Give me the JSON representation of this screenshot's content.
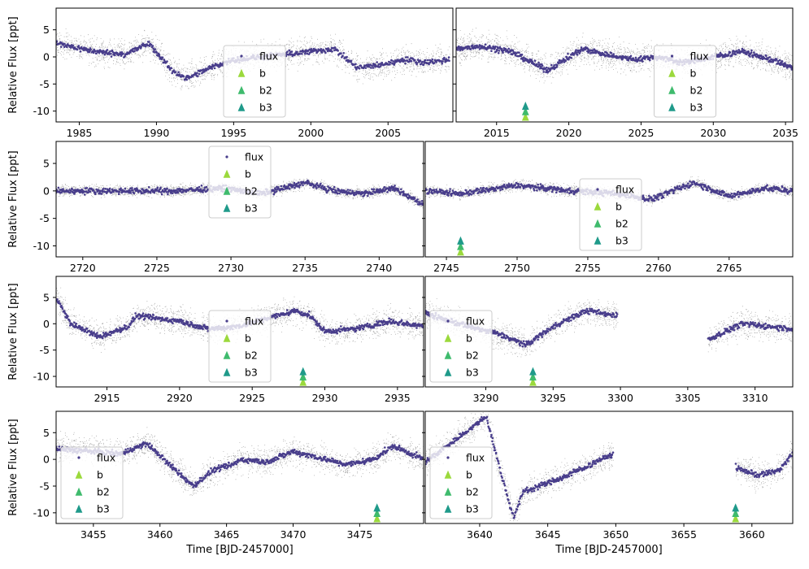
{
  "legend_labels": [
    "flux",
    "b",
    "b2",
    "b3"
  ],
  "colors": {
    "binned": "#483d8b",
    "raw": "#222222",
    "b": "#9bd93c",
    "b2": "#3fbb6d",
    "b3": "#1f9a8a",
    "band": "#e6e0f0"
  },
  "chart_data": [
    {
      "type": "scatter",
      "xlim": [
        1983.5,
        2009.2
      ],
      "ylim": [
        -12,
        9
      ],
      "xticks": [
        1985,
        1990,
        1995,
        2000,
        2005
      ],
      "yticks": [
        5,
        0,
        -5,
        -10
      ],
      "ylabel": "Relative Flux [ppt]",
      "xlabel": "",
      "legend": "lower-center",
      "transits": [],
      "curve": [
        [
          1983.5,
          2.5
        ],
        [
          1986,
          1
        ],
        [
          1988,
          0.5
        ],
        [
          1989.5,
          2.5
        ],
        [
          1991,
          -2.5
        ],
        [
          1992,
          -4
        ],
        [
          1993.5,
          -2
        ],
        [
          1995,
          -0.5
        ],
        [
          1997,
          0
        ],
        [
          1998.5,
          0.5
        ],
        [
          2000,
          1
        ],
        [
          2001.5,
          1.5
        ],
        [
          2003,
          -2
        ],
        [
          2004.5,
          -1.5
        ],
        [
          2006,
          -0.5
        ],
        [
          2007.5,
          -1
        ],
        [
          2009,
          -0.5
        ]
      ]
    },
    {
      "type": "scatter",
      "xlim": [
        2012.2,
        2035.5
      ],
      "ylim": [
        -12,
        9
      ],
      "xticks": [
        2015,
        2020,
        2025,
        2030,
        2035
      ],
      "yticks": [
        5,
        0,
        -5,
        -10
      ],
      "ylabel": "",
      "xlabel": "",
      "legend": "lower-right",
      "transits": [
        2017
      ],
      "curve": [
        [
          2012.2,
          1.5
        ],
        [
          2014,
          2
        ],
        [
          2016,
          1
        ],
        [
          2018.5,
          -2.5
        ],
        [
          2020,
          0
        ],
        [
          2021,
          1.5
        ],
        [
          2022.5,
          0.5
        ],
        [
          2024.5,
          -0.5
        ],
        [
          2026,
          0
        ],
        [
          2028,
          -1
        ],
        [
          2030,
          0
        ],
        [
          2032,
          1
        ],
        [
          2034,
          -0.5
        ],
        [
          2035.5,
          -2
        ]
      ]
    },
    {
      "type": "scatter",
      "xlim": [
        2718.2,
        2743
      ],
      "ylim": [
        -12,
        9
      ],
      "xticks": [
        2720,
        2725,
        2730,
        2735,
        2740
      ],
      "yticks": [
        5,
        0,
        -5,
        -10
      ],
      "ylabel": "Relative Flux [ppt]",
      "xlabel": "",
      "legend": "center",
      "transits": [],
      "curve": [
        [
          2718.2,
          0
        ],
        [
          2722,
          0
        ],
        [
          2726,
          0
        ],
        [
          2729.5,
          0.5
        ],
        [
          2732,
          -0.5
        ],
        [
          2735,
          1.5
        ],
        [
          2737,
          0
        ],
        [
          2739,
          -0.5
        ],
        [
          2741,
          0.5
        ],
        [
          2743,
          -2.5
        ]
      ]
    },
    {
      "type": "scatter",
      "xlim": [
        2743.5,
        2769.5
      ],
      "ylim": [
        -12,
        9
      ],
      "xticks": [
        2745,
        2750,
        2755,
        2760,
        2765
      ],
      "yticks": [
        5,
        0,
        -5,
        -10
      ],
      "ylabel": "",
      "xlabel": "",
      "legend": "center",
      "transits": [
        2746
      ],
      "curve": [
        [
          2743.5,
          0
        ],
        [
          2746,
          -0.5
        ],
        [
          2750,
          1
        ],
        [
          2754,
          0
        ],
        [
          2757,
          -0.5
        ],
        [
          2759.5,
          -1.5
        ],
        [
          2762.5,
          1.5
        ],
        [
          2765,
          -1
        ],
        [
          2767.5,
          0.5
        ],
        [
          2769.5,
          0
        ]
      ]
    },
    {
      "type": "scatter",
      "xlim": [
        2911.5,
        2936.8
      ],
      "ylim": [
        -12,
        9
      ],
      "xticks": [
        2915,
        2920,
        2925,
        2930,
        2935
      ],
      "yticks": [
        5,
        0,
        -5,
        -10
      ],
      "ylabel": "Relative Flux [ppt]",
      "xlabel": "",
      "legend": "lower-center",
      "transits": [
        2928.5
      ],
      "curve": [
        [
          2911.5,
          5
        ],
        [
          2912.5,
          0
        ],
        [
          2914.5,
          -2.5
        ],
        [
          2916.5,
          -0.5
        ],
        [
          2917,
          1.5
        ],
        [
          2920,
          0.5
        ],
        [
          2922,
          -1
        ],
        [
          2924,
          -0.5
        ],
        [
          2926,
          1
        ],
        [
          2928,
          2.5
        ],
        [
          2929,
          1.5
        ],
        [
          2930,
          -1.5
        ],
        [
          2932,
          -1
        ],
        [
          2934.5,
          0.5
        ],
        [
          2936.8,
          -0.5
        ]
      ]
    },
    {
      "type": "scatter",
      "xlim": [
        3285.5,
        3312.8
      ],
      "ylim": [
        -12,
        9
      ],
      "xticks": [
        3290,
        3295,
        3300,
        3305,
        3310
      ],
      "yticks": [
        5,
        0,
        -5,
        -10
      ],
      "ylabel": "",
      "xlabel": "",
      "legend": "lower-left",
      "transits": [
        3293.5
      ],
      "curve": [
        [
          3285.5,
          2
        ],
        [
          3288,
          0
        ],
        [
          3291,
          -2
        ],
        [
          3293,
          -4
        ],
        [
          3295,
          -0.5
        ],
        [
          3297.5,
          2.5
        ],
        [
          3299.8,
          1.5
        ],
        [
          3306.5,
          -3
        ],
        [
          3309,
          0
        ],
        [
          3311,
          -0.5
        ],
        [
          3312.8,
          -1
        ]
      ]
    },
    {
      "type": "scatter",
      "xlim": [
        3452.2,
        3479.8
      ],
      "ylim": [
        -12,
        9
      ],
      "xticks": [
        3455,
        3460,
        3465,
        3470,
        3475
      ],
      "yticks": [
        5,
        0,
        -5,
        -10
      ],
      "ylabel": "Relative Flux [ppt]",
      "xlabel": "Time [BJD-2457000]",
      "legend": "lower-left",
      "transits": [
        3476.3
      ],
      "curve": [
        [
          3452.2,
          2
        ],
        [
          3455,
          1.5
        ],
        [
          3457,
          1
        ],
        [
          3459,
          3
        ],
        [
          3460.5,
          -0.5
        ],
        [
          3462.5,
          -5
        ],
        [
          3464,
          -2
        ],
        [
          3465.5,
          -1
        ],
        [
          3466,
          0
        ],
        [
          3468,
          -0.5
        ],
        [
          3470,
          1.5
        ],
        [
          3472.5,
          0
        ],
        [
          3474,
          -1
        ],
        [
          3476,
          0
        ],
        [
          3477.5,
          2.5
        ],
        [
          3479.8,
          0
        ]
      ]
    },
    {
      "type": "scatter",
      "xlim": [
        3636,
        3663
      ],
      "ylim": [
        -12,
        9
      ],
      "xticks": [
        3640,
        3645,
        3650,
        3655,
        3660
      ],
      "yticks": [
        5,
        0,
        -5,
        -10
      ],
      "ylabel": "",
      "xlabel": "Time [BJD-2457000]",
      "legend": "lower-left",
      "transits": [
        3658.8
      ],
      "curve": [
        [
          3636,
          -0.5
        ],
        [
          3640.5,
          8
        ],
        [
          3641.5,
          -2
        ],
        [
          3642.5,
          -11
        ],
        [
          3643.2,
          -6
        ],
        [
          3646,
          -3.5
        ],
        [
          3649.8,
          1
        ],
        [
          3658.8,
          -1.5
        ],
        [
          3660.5,
          -3
        ],
        [
          3662,
          -2
        ],
        [
          3663,
          1
        ]
      ]
    }
  ]
}
